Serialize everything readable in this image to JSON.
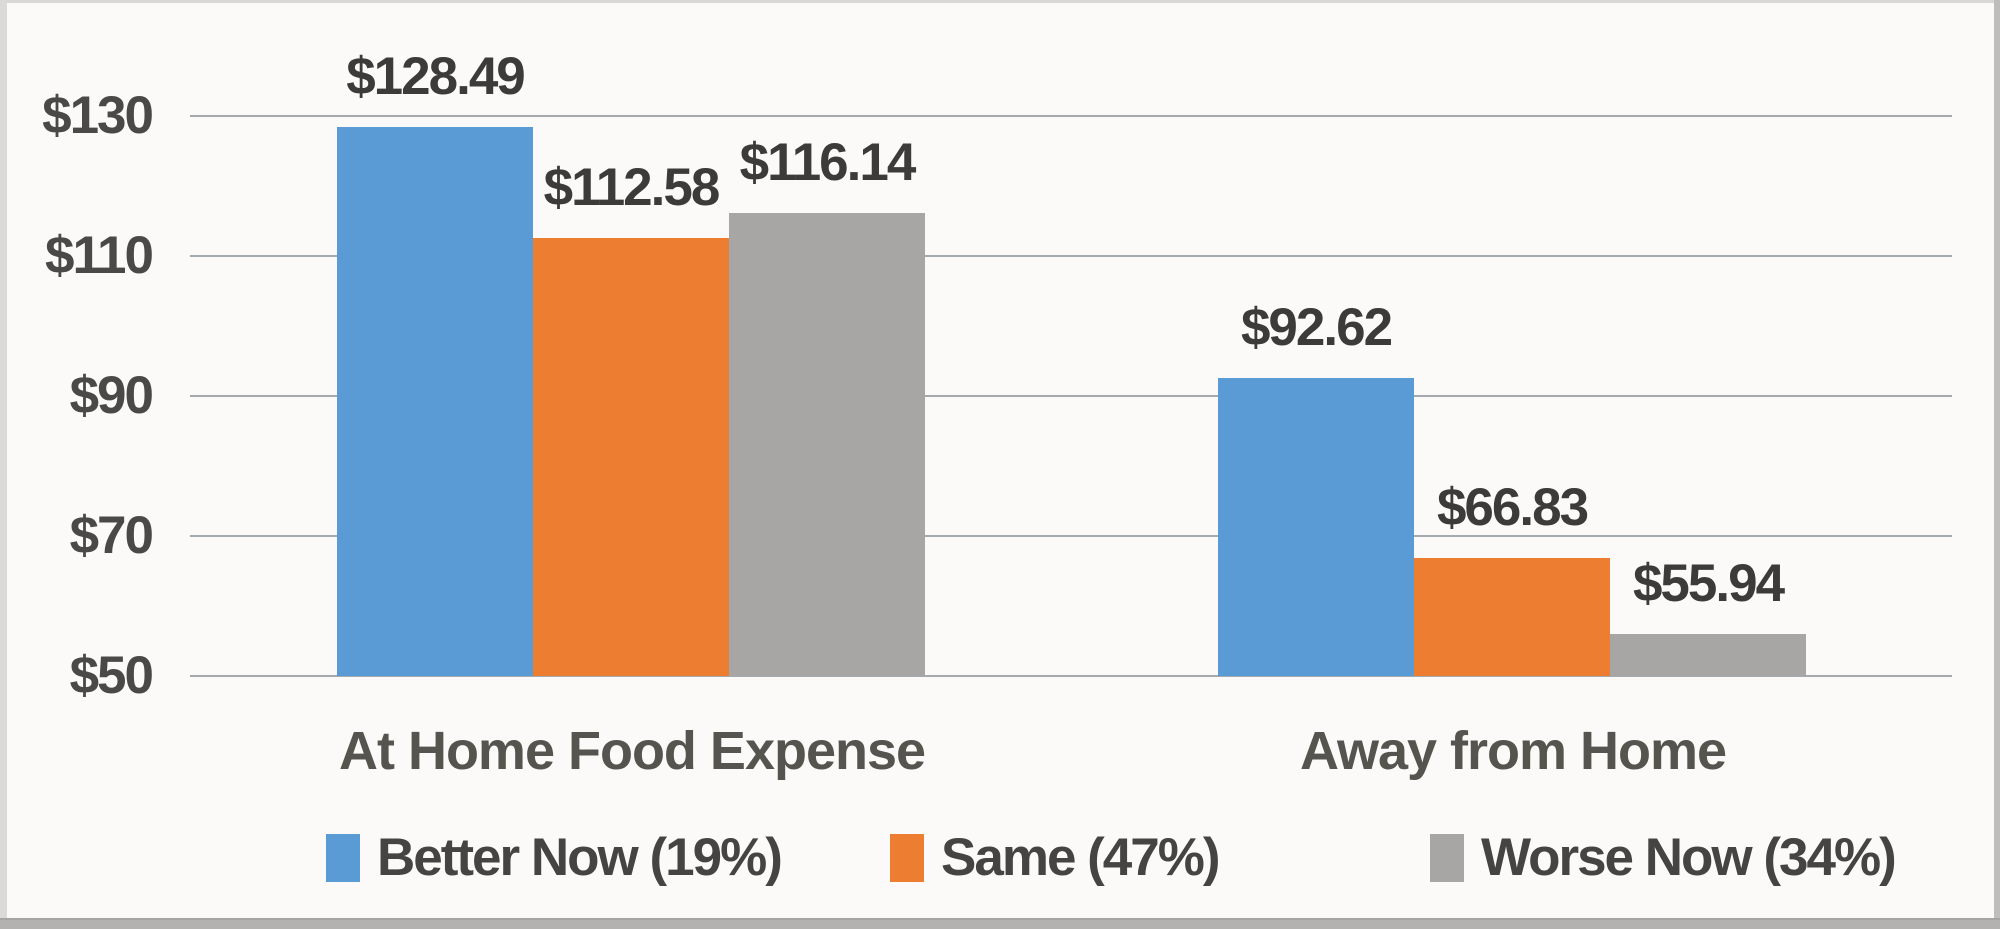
{
  "chart_data": {
    "type": "bar",
    "title": "",
    "categories": [
      "At Home Food Expense",
      "Away from Home"
    ],
    "series": [
      {
        "name": "Better Now (19%)",
        "color": "#5b9bd5",
        "values": [
          128.49,
          92.62
        ],
        "labels": [
          "$128.49",
          "$92.62"
        ]
      },
      {
        "name": "Same (47%)",
        "color": "#ed7d31",
        "values": [
          112.58,
          66.83
        ],
        "labels": [
          "$112.58",
          "$66.83"
        ]
      },
      {
        "name": "Worse Now (34%)",
        "color": "#a7a6a5",
        "values": [
          116.14,
          55.94
        ],
        "labels": [
          "$116.14",
          "$55.94"
        ]
      }
    ],
    "y_axis": {
      "min": 50,
      "max": 130,
      "tick_values": [
        130,
        110,
        90,
        70,
        50
      ],
      "tick_labels": [
        "$130",
        "$110",
        "$90",
        "$70",
        "$50"
      ]
    },
    "legend_position": "bottom",
    "grid": true
  },
  "colors": {
    "grid": "#a4a9b0",
    "background": "#fbfaf8",
    "blue": "#5b9bd5",
    "orange": "#ed7d31",
    "gray": "#a7a6a5",
    "text": "#3c3b3a"
  }
}
